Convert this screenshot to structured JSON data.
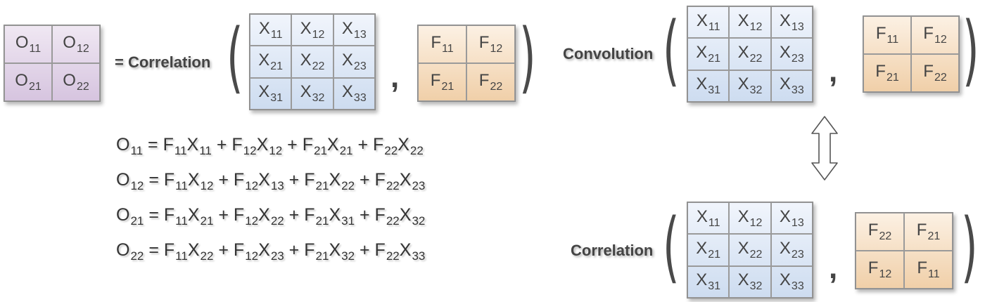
{
  "left": {
    "output_matrix": {
      "cells": [
        [
          "O",
          "11"
        ],
        [
          "O",
          "12"
        ],
        [
          "O",
          "21"
        ],
        [
          "O",
          "22"
        ]
      ]
    },
    "equals_label": "= Correlation",
    "x_matrix": {
      "cells": [
        [
          "X",
          "11"
        ],
        [
          "X",
          "12"
        ],
        [
          "X",
          "13"
        ],
        [
          "X",
          "21"
        ],
        [
          "X",
          "22"
        ],
        [
          "X",
          "23"
        ],
        [
          "X",
          "31"
        ],
        [
          "X",
          "32"
        ],
        [
          "X",
          "33"
        ]
      ]
    },
    "f_matrix": {
      "cells": [
        [
          "F",
          "11"
        ],
        [
          "F",
          "12"
        ],
        [
          "F",
          "21"
        ],
        [
          "F",
          "22"
        ]
      ]
    }
  },
  "equations": [
    {
      "lhs": [
        "O",
        "11"
      ],
      "terms": [
        [
          [
            "F",
            "11"
          ],
          [
            "X",
            "11"
          ]
        ],
        [
          [
            "F",
            "12"
          ],
          [
            "X",
            "12"
          ]
        ],
        [
          [
            "F",
            "21"
          ],
          [
            "X",
            "21"
          ]
        ],
        [
          [
            "F",
            "22"
          ],
          [
            "X",
            "22"
          ]
        ]
      ]
    },
    {
      "lhs": [
        "O",
        "12"
      ],
      "terms": [
        [
          [
            "F",
            "11"
          ],
          [
            "X",
            "12"
          ]
        ],
        [
          [
            "F",
            "12"
          ],
          [
            "X",
            "13"
          ]
        ],
        [
          [
            "F",
            "21"
          ],
          [
            "X",
            "22"
          ]
        ],
        [
          [
            "F",
            "22"
          ],
          [
            "X",
            "23"
          ]
        ]
      ]
    },
    {
      "lhs": [
        "O",
        "21"
      ],
      "terms": [
        [
          [
            "F",
            "11"
          ],
          [
            "X",
            "21"
          ]
        ],
        [
          [
            "F",
            "12"
          ],
          [
            "X",
            "22"
          ]
        ],
        [
          [
            "F",
            "21"
          ],
          [
            "X",
            "31"
          ]
        ],
        [
          [
            "F",
            "22"
          ],
          [
            "X",
            "32"
          ]
        ]
      ]
    },
    {
      "lhs": [
        "O",
        "22"
      ],
      "terms": [
        [
          [
            "F",
            "11"
          ],
          [
            "X",
            "22"
          ]
        ],
        [
          [
            "F",
            "12"
          ],
          [
            "X",
            "23"
          ]
        ],
        [
          [
            "F",
            "21"
          ],
          [
            "X",
            "32"
          ]
        ],
        [
          [
            "F",
            "22"
          ],
          [
            "X",
            "33"
          ]
        ]
      ]
    }
  ],
  "right_top": {
    "label": "Convolution",
    "x_matrix": {
      "cells": [
        [
          "X",
          "11"
        ],
        [
          "X",
          "12"
        ],
        [
          "X",
          "13"
        ],
        [
          "X",
          "21"
        ],
        [
          "X",
          "22"
        ],
        [
          "X",
          "23"
        ],
        [
          "X",
          "31"
        ],
        [
          "X",
          "32"
        ],
        [
          "X",
          "33"
        ]
      ]
    },
    "f_matrix": {
      "cells": [
        [
          "F",
          "11"
        ],
        [
          "F",
          "12"
        ],
        [
          "F",
          "21"
        ],
        [
          "F",
          "22"
        ]
      ]
    }
  },
  "right_bottom": {
    "label": "Correlation",
    "x_matrix": {
      "cells": [
        [
          "X",
          "11"
        ],
        [
          "X",
          "12"
        ],
        [
          "X",
          "13"
        ],
        [
          "X",
          "21"
        ],
        [
          "X",
          "22"
        ],
        [
          "X",
          "23"
        ],
        [
          "X",
          "31"
        ],
        [
          "X",
          "32"
        ],
        [
          "X",
          "33"
        ]
      ]
    },
    "f_matrix": {
      "cells": [
        [
          "F",
          "22"
        ],
        [
          "F",
          "21"
        ],
        [
          "F",
          "12"
        ],
        [
          "F",
          "11"
        ]
      ]
    }
  },
  "symbols": {
    "paren_open": "(",
    "paren_close": ")",
    "comma": ",",
    "plus": "+",
    "equals": "="
  },
  "colors": {
    "output": "#ddcbe5",
    "input": "#d4e2f4",
    "filter": "#f3d6b4"
  },
  "icons": {
    "equivalence_arrow": "double-headed-vertical-arrow-icon"
  }
}
